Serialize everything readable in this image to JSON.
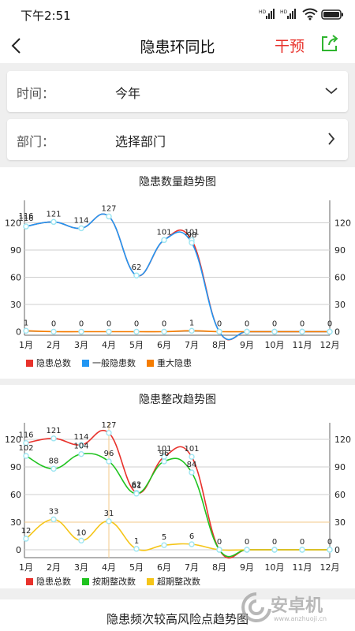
{
  "status_bar": {
    "time": "下午2:51",
    "icons": [
      "hd-signal-icon",
      "hd-signal-icon",
      "wifi-icon",
      "battery-icon"
    ]
  },
  "nav": {
    "title": "隐患环同比",
    "action_label": "干预",
    "action_color": "#e8322c",
    "share_color": "#2fb52f"
  },
  "filters": {
    "time": {
      "label": "时间：",
      "value": "今年"
    },
    "department": {
      "label": "部门：",
      "value": "选择部门"
    }
  },
  "colors": {
    "red": "#e8322c",
    "blue": "#2196f3",
    "orange": "#f57c00",
    "green": "#1fc31f",
    "yellow": "#f5c518",
    "point": "#9fe6f2"
  },
  "chart_data": [
    {
      "type": "line",
      "title": "隐患数量趋势图",
      "categories": [
        "1月",
        "2月",
        "3月",
        "4月",
        "5月",
        "6月",
        "7月",
        "8月",
        "9月",
        "10月",
        "11月",
        "12月"
      ],
      "ylim": [
        0,
        135
      ],
      "yticks": [
        0,
        30,
        60,
        90,
        120
      ],
      "grid": true,
      "legend": "bottom-left",
      "series": [
        {
          "name": "隐患总数",
          "color": "#e8322c",
          "values": [
            116,
            121,
            114,
            127,
            62,
            101,
            101,
            0,
            0,
            0,
            0,
            0
          ]
        },
        {
          "name": "一般隐患数",
          "color": "#2196f3",
          "values": [
            116,
            121,
            114,
            127,
            62,
            101,
            98,
            0,
            0,
            0,
            0,
            0
          ]
        },
        {
          "name": "重大隐患",
          "color": "#f57c00",
          "values": [
            1,
            0,
            0,
            0,
            0,
            0,
            1,
            0,
            0,
            0,
            0,
            0
          ]
        }
      ],
      "point_labels": [
        {
          "i": 0,
          "v": 116,
          "text": "116"
        },
        {
          "i": 0,
          "v": 116,
          "text": "116",
          "dy": -3
        },
        {
          "i": 1,
          "v": 121,
          "text": "121"
        },
        {
          "i": 2,
          "v": 114,
          "text": "114"
        },
        {
          "i": 3,
          "v": 127,
          "text": "127"
        },
        {
          "i": 4,
          "v": 62,
          "text": "62"
        },
        {
          "i": 5,
          "v": 101,
          "text": "101"
        },
        {
          "i": 6,
          "v": 101,
          "text": "101"
        },
        {
          "i": 6,
          "v": 98,
          "text": "98"
        },
        {
          "i": 0,
          "v": 1,
          "text": "1"
        },
        {
          "i": 1,
          "v": 0,
          "text": "0"
        },
        {
          "i": 2,
          "v": 0,
          "text": "0"
        },
        {
          "i": 3,
          "v": 0,
          "text": "0"
        },
        {
          "i": 4,
          "v": 0,
          "text": "0"
        },
        {
          "i": 5,
          "v": 0,
          "text": "0"
        },
        {
          "i": 6,
          "v": 1,
          "text": "1"
        },
        {
          "i": 7,
          "v": 0,
          "text": "0"
        },
        {
          "i": 8,
          "v": 0,
          "text": "0"
        },
        {
          "i": 9,
          "v": 0,
          "text": "0"
        },
        {
          "i": 10,
          "v": 0,
          "text": "0"
        },
        {
          "i": 11,
          "v": 0,
          "text": "0"
        }
      ]
    },
    {
      "type": "line",
      "title": "隐患整改趋势图",
      "categories": [
        "1月",
        "2月",
        "3月",
        "4月",
        "5月",
        "6月",
        "7月",
        "8月",
        "9月",
        "10月",
        "11月",
        "12月"
      ],
      "ylim": [
        0,
        135
      ],
      "yticks": [
        0,
        30,
        60,
        90,
        120
      ],
      "grid": true,
      "legend": "bottom-left",
      "crosshair": {
        "index": 3,
        "value": 30
      },
      "series": [
        {
          "name": "隐患总数",
          "color": "#e8322c",
          "values": [
            116,
            121,
            114,
            127,
            62,
            101,
            101,
            0,
            0,
            0,
            0,
            0
          ]
        },
        {
          "name": "按期整改数",
          "color": "#1fc31f",
          "values": [
            102,
            88,
            104,
            96,
            61,
            96,
            84,
            0,
            0,
            0,
            0,
            0
          ]
        },
        {
          "name": "超期整改数",
          "color": "#f5c518",
          "values": [
            12,
            33,
            10,
            31,
            1,
            5,
            6,
            0,
            0,
            0,
            0,
            0
          ]
        }
      ],
      "point_labels": [
        {
          "i": 0,
          "v": 116,
          "text": "116"
        },
        {
          "i": 1,
          "v": 121,
          "text": "121"
        },
        {
          "i": 2,
          "v": 114,
          "text": "114"
        },
        {
          "i": 3,
          "v": 127,
          "text": "127"
        },
        {
          "i": 4,
          "v": 62,
          "text": "62"
        },
        {
          "i": 5,
          "v": 101,
          "text": "101"
        },
        {
          "i": 6,
          "v": 101,
          "text": "101"
        },
        {
          "i": 0,
          "v": 102,
          "text": "102"
        },
        {
          "i": 1,
          "v": 88,
          "text": "88"
        },
        {
          "i": 2,
          "v": 104,
          "text": "104"
        },
        {
          "i": 3,
          "v": 96,
          "text": "96"
        },
        {
          "i": 4,
          "v": 61,
          "text": "61"
        },
        {
          "i": 5,
          "v": 96,
          "text": "96"
        },
        {
          "i": 6,
          "v": 84,
          "text": "84"
        },
        {
          "i": 0,
          "v": 12,
          "text": "12"
        },
        {
          "i": 1,
          "v": 33,
          "text": "33"
        },
        {
          "i": 2,
          "v": 10,
          "text": "10"
        },
        {
          "i": 3,
          "v": 31,
          "text": "31"
        },
        {
          "i": 4,
          "v": 1,
          "text": "1"
        },
        {
          "i": 5,
          "v": 5,
          "text": "5"
        },
        {
          "i": 6,
          "v": 6,
          "text": "6"
        },
        {
          "i": 7,
          "v": 0,
          "text": "0"
        },
        {
          "i": 8,
          "v": 0,
          "text": "0"
        },
        {
          "i": 9,
          "v": 0,
          "text": "0"
        },
        {
          "i": 10,
          "v": 0,
          "text": "0"
        },
        {
          "i": 11,
          "v": 0,
          "text": "0"
        }
      ]
    }
  ],
  "third_chart": {
    "title": "隐患频次较高风险点趋势图"
  },
  "watermark": {
    "text": "安卓机",
    "url": "www.anzhuoji.cn"
  }
}
